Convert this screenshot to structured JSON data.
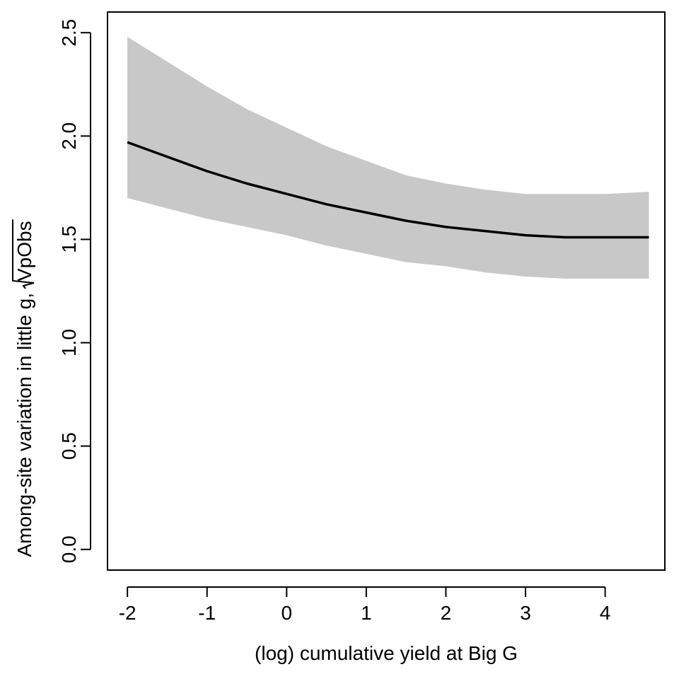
{
  "chart_data": {
    "type": "line",
    "title": "",
    "xlabel": "(log) cumulative yield at Big G",
    "ylabel": "Among-site variation in little g,",
    "ylabel_radical": "VpObs",
    "xlim": [
      -2.25,
      4.75
    ],
    "ylim": [
      -0.1,
      2.6
    ],
    "xticks": [
      -2,
      -1,
      0,
      1,
      2,
      3,
      4
    ],
    "yticks": [
      0.0,
      0.5,
      1.0,
      1.5,
      2.0,
      2.5
    ],
    "xtick_labels": [
      "-2",
      "-1",
      "0",
      "1",
      "2",
      "3",
      "4"
    ],
    "ytick_labels": [
      "0.0",
      "0.5",
      "1.0",
      "1.5",
      "2.0",
      "2.5"
    ],
    "grid": false,
    "legend": "none",
    "colors": {
      "line": "#000000",
      "band": "#c8c8c8",
      "frame": "#000000"
    },
    "series": [
      {
        "x": [
          -2.0,
          -1.5,
          -1.0,
          -0.5,
          0.0,
          0.5,
          1.0,
          1.5,
          2.0,
          2.5,
          3.0,
          3.5,
          4.0,
          4.55
        ],
        "values": [
          1.97,
          1.9,
          1.83,
          1.77,
          1.72,
          1.67,
          1.63,
          1.59,
          1.56,
          1.54,
          1.52,
          1.51,
          1.51,
          1.51
        ],
        "lower": [
          1.7,
          1.65,
          1.6,
          1.56,
          1.52,
          1.47,
          1.43,
          1.39,
          1.37,
          1.34,
          1.32,
          1.31,
          1.31,
          1.31
        ],
        "upper": [
          2.48,
          2.36,
          2.24,
          2.13,
          2.04,
          1.95,
          1.88,
          1.81,
          1.77,
          1.74,
          1.72,
          1.72,
          1.72,
          1.73
        ]
      }
    ]
  }
}
